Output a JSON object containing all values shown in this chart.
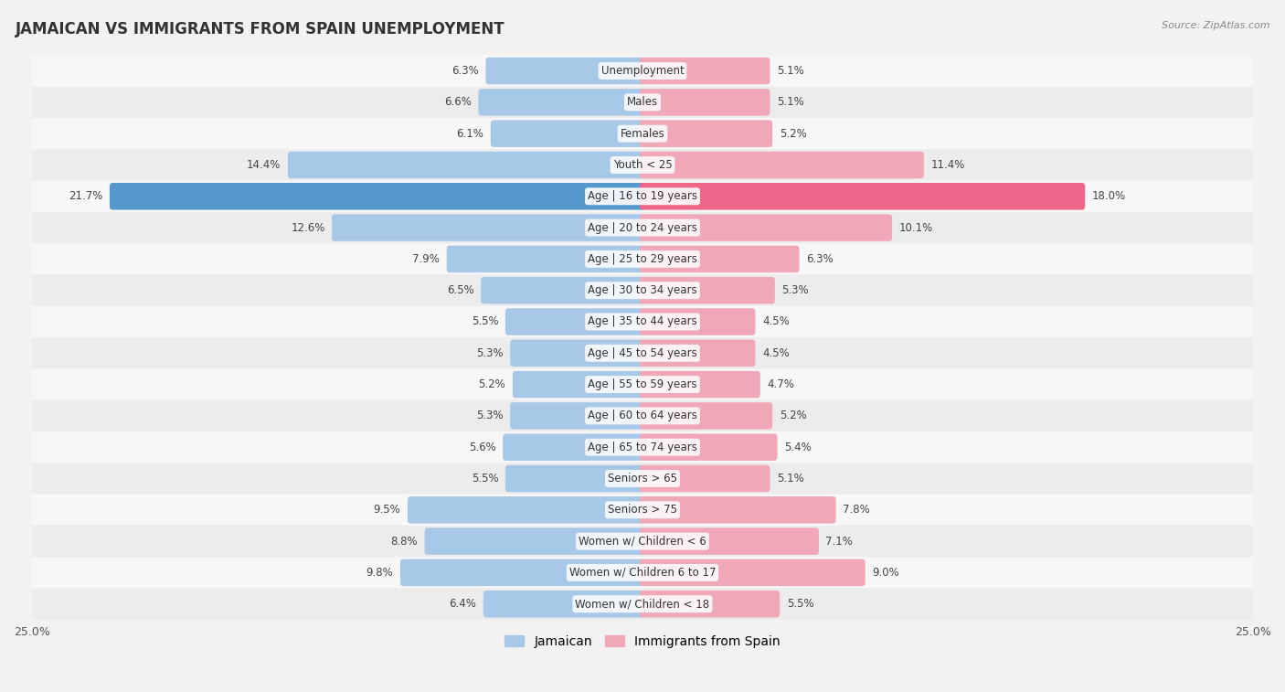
{
  "title": "JAMAICAN VS IMMIGRANTS FROM SPAIN UNEMPLOYMENT",
  "source": "Source: ZipAtlas.com",
  "categories": [
    "Unemployment",
    "Males",
    "Females",
    "Youth < 25",
    "Age | 16 to 19 years",
    "Age | 20 to 24 years",
    "Age | 25 to 29 years",
    "Age | 30 to 34 years",
    "Age | 35 to 44 years",
    "Age | 45 to 54 years",
    "Age | 55 to 59 years",
    "Age | 60 to 64 years",
    "Age | 65 to 74 years",
    "Seniors > 65",
    "Seniors > 75",
    "Women w/ Children < 6",
    "Women w/ Children 6 to 17",
    "Women w/ Children < 18"
  ],
  "jamaican": [
    6.3,
    6.6,
    6.1,
    14.4,
    21.7,
    12.6,
    7.9,
    6.5,
    5.5,
    5.3,
    5.2,
    5.3,
    5.6,
    5.5,
    9.5,
    8.8,
    9.8,
    6.4
  ],
  "spain": [
    5.1,
    5.1,
    5.2,
    11.4,
    18.0,
    10.1,
    6.3,
    5.3,
    4.5,
    4.5,
    4.7,
    5.2,
    5.4,
    5.1,
    7.8,
    7.1,
    9.0,
    5.5
  ],
  "jamaican_color": "#a8c8e8",
  "spain_color": "#f0a8b8",
  "highlight_jamaican_color": "#5599cc",
  "highlight_spain_color": "#ee6688",
  "highlight_row": 4,
  "xlim": 25.0,
  "bar_height": 0.62,
  "legend_jamaican": "Jamaican",
  "legend_spain": "Immigrants from Spain",
  "row_colors": [
    "#f7f7f7",
    "#ececec"
  ]
}
